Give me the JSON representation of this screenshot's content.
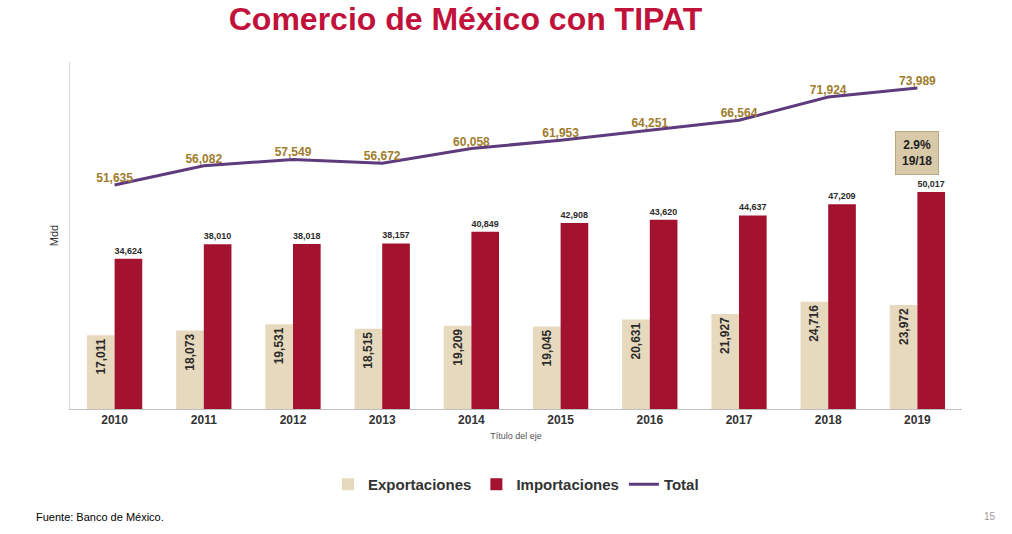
{
  "chart_data": {
    "type": "bar",
    "title": "Comercio de México con TIPAT",
    "x_label": "Título del eje",
    "y_label": "Mdd",
    "categories": [
      "2010",
      "2011",
      "2012",
      "2013",
      "2014",
      "2015",
      "2016",
      "2017",
      "2018",
      "2019"
    ],
    "series": [
      {
        "name": "Exportaciones",
        "type": "bar",
        "color": "#e6d9bd",
        "values": [
          17011,
          18073,
          19531,
          18515,
          19209,
          19045,
          20631,
          21927,
          24716,
          23972
        ],
        "value_labels": [
          "17,011",
          "18,073",
          "19,531",
          "18,515",
          "19,209",
          "19,045",
          "20,631",
          "21,927",
          "24,716",
          "23,972"
        ]
      },
      {
        "name": "Importaciones",
        "type": "bar",
        "color": "#a3122f",
        "values": [
          34624,
          38010,
          38018,
          38157,
          40849,
          42908,
          43620,
          44637,
          47209,
          50017
        ],
        "value_labels": [
          "34,624",
          "38,010",
          "38,018",
          "38,157",
          "40,849",
          "42,908",
          "43,620",
          "44,637",
          "47,209",
          "50,017"
        ]
      },
      {
        "name": "Total",
        "type": "line",
        "color": "#5e3b7d",
        "values": [
          51635,
          56082,
          57549,
          56672,
          60058,
          61953,
          64251,
          66564,
          71924,
          73989
        ],
        "value_labels": [
          "51,635",
          "56,082",
          "57,549",
          "56,672",
          "60,058",
          "61,953",
          "64,251",
          "66,564",
          "71,924",
          "73,989"
        ]
      }
    ],
    "ylim": [
      0,
      80000
    ],
    "grid": false,
    "legend": "bottom",
    "data_labels": true,
    "tick_labels": "x",
    "annotations": [
      {
        "lines": [
          "2.9%",
          "19/18"
        ],
        "x": "2019"
      }
    ],
    "source": "Fuente: Banco de México.",
    "page": "15"
  }
}
